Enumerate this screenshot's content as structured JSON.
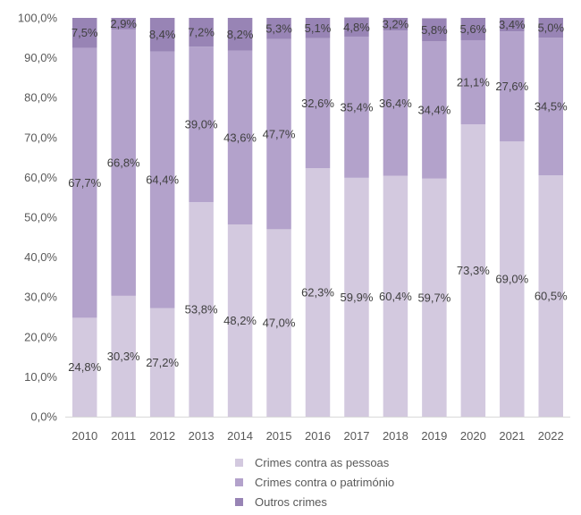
{
  "chart_data": {
    "type": "bar",
    "stacked": true,
    "percent": true,
    "categories": [
      "2010",
      "2011",
      "2012",
      "2013",
      "2014",
      "2015",
      "2016",
      "2017",
      "2018",
      "2019",
      "2020",
      "2021",
      "2022"
    ],
    "series": [
      {
        "name": "Crimes contra as pessoas",
        "color": "#d3c9df",
        "values": [
          24.8,
          30.3,
          27.2,
          53.8,
          48.2,
          47.0,
          62.3,
          59.9,
          60.4,
          59.7,
          73.3,
          69.0,
          60.5
        ],
        "labels": [
          "24,8%",
          "30,3%",
          "27,2%",
          "53,8%",
          "48,2%",
          "47,0%",
          "62,3%",
          "59,9%",
          "60,4%",
          "59,7%",
          "73,3%",
          "69,0%",
          "60,5%"
        ]
      },
      {
        "name": "Crimes contra o património",
        "color": "#b3a2cb",
        "values": [
          67.7,
          66.8,
          64.4,
          39.0,
          43.6,
          47.7,
          32.6,
          35.4,
          36.4,
          34.4,
          21.1,
          27.6,
          34.5
        ],
        "labels": [
          "67,7%",
          "66,8%",
          "64,4%",
          "39,0%",
          "43,6%",
          "47,7%",
          "32,6%",
          "35,4%",
          "36,4%",
          "34,4%",
          "21,1%",
          "27,6%",
          "34,5%"
        ]
      },
      {
        "name": "Outros crimes",
        "color": "#9884b5",
        "values": [
          7.5,
          2.9,
          8.4,
          7.2,
          8.2,
          5.3,
          5.1,
          4.8,
          3.2,
          5.8,
          5.6,
          3.4,
          5.0
        ],
        "labels": [
          "7,5%",
          "2,9%",
          "8,4%",
          "7,2%",
          "8,2%",
          "5,3%",
          "5,1%",
          "4,8%",
          "3,2%",
          "5,8%",
          "5,6%",
          "3,4%",
          "5,0%"
        ]
      }
    ],
    "y_ticks": [
      0,
      10,
      20,
      30,
      40,
      50,
      60,
      70,
      80,
      90,
      100
    ],
    "y_tick_labels": [
      "0,0%",
      "10,0%",
      "20,0%",
      "30,0%",
      "40,0%",
      "50,0%",
      "60,0%",
      "70,0%",
      "80,0%",
      "90,0%",
      "100,0%"
    ],
    "ylim": [
      0,
      100
    ],
    "grid": false,
    "legend_position": "bottom",
    "title": "",
    "xlabel": "",
    "ylabel": ""
  }
}
